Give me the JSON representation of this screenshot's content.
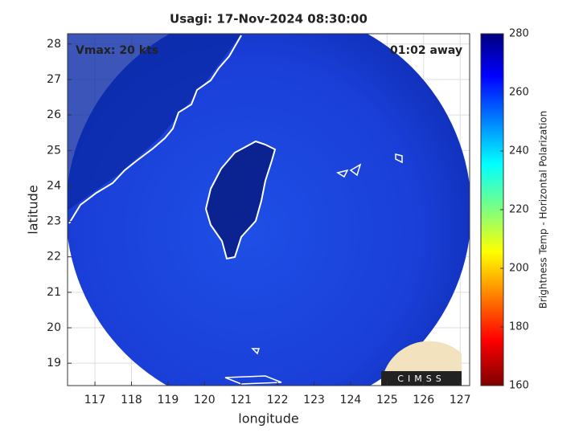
{
  "chart_data": {
    "type": "map",
    "title": "Usagi: 17-Nov-2024 08:30:00",
    "annotations": [
      "Vmax: 20 kts",
      "01:02 away"
    ],
    "x_label": "longitude",
    "y_label": "latitude",
    "xlim": [
      116.25,
      127.26
    ],
    "xticks": [
      117,
      118,
      119,
      120,
      121,
      122,
      123,
      124,
      125,
      126,
      127
    ],
    "ylim": [
      18.37,
      28.29
    ],
    "yticks": [
      19,
      20,
      21,
      22,
      23,
      24,
      25,
      26,
      27,
      28
    ],
    "grid": true,
    "colorbar": {
      "label": "Brightness Temp - Horizontal Polarization",
      "lim": [
        160,
        280
      ],
      "ticks": [
        160,
        180,
        200,
        220,
        240,
        260,
        280
      ]
    }
  },
  "logo": "CIMSS"
}
